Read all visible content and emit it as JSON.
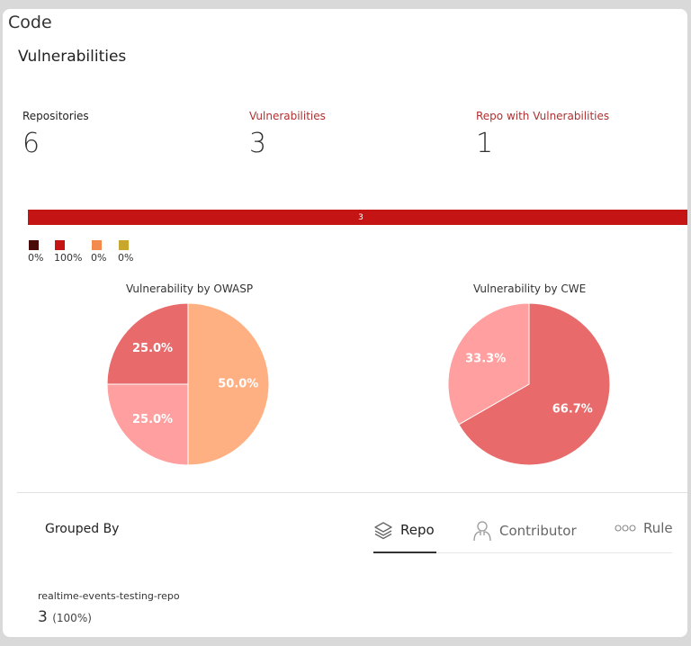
{
  "card": {
    "title": "Code",
    "section_title": "Vulnerabilities"
  },
  "stats": [
    {
      "label": "Repositories",
      "value": "6"
    },
    {
      "label": "Vulnerabilities",
      "value": "3"
    },
    {
      "label": "Repo with Vulnerabilities",
      "value": "1"
    }
  ],
  "severity_bar": {
    "label": "3",
    "color": "#c41414"
  },
  "severity_legend": [
    {
      "color": "#4a0a0a",
      "percent": "0%"
    },
    {
      "color": "#c41414",
      "percent": "100%"
    },
    {
      "color": "#f28a4e",
      "percent": "0%"
    },
    {
      "color": "#c9a62c",
      "percent": "0%"
    }
  ],
  "chart_data": [
    {
      "type": "pie",
      "title": "Vulnerability by OWASP",
      "slices": [
        {
          "value": 50.0,
          "label": "50.0%",
          "color": "#ffb083"
        },
        {
          "value": 25.0,
          "label": "25.0%",
          "color": "#ff9f9f"
        },
        {
          "value": 25.0,
          "label": "25.0%",
          "color": "#e86a6a"
        }
      ]
    },
    {
      "type": "pie",
      "title": "Vulnerability by CWE",
      "slices": [
        {
          "value": 66.7,
          "label": "66.7%",
          "color": "#e86a6a"
        },
        {
          "value": 33.3,
          "label": "33.3%",
          "color": "#ff9f9f"
        }
      ]
    }
  ],
  "grouped": {
    "label": "Grouped By",
    "tabs": [
      {
        "label": "Repo",
        "icon": "layers-icon",
        "active": true
      },
      {
        "label": "Contributor",
        "icon": "person-icon",
        "active": false
      },
      {
        "label": "Rule",
        "icon": "dots-icon",
        "active": false
      }
    ]
  },
  "repo_item": {
    "name": "realtime-events-testing-repo",
    "count": "3",
    "percent": "(100%)"
  }
}
